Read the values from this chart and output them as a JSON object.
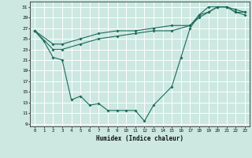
{
  "xlabel": "Humidex (Indice chaleur)",
  "background_color": "#cce8e0",
  "grid_color": "#ffffff",
  "line_color": "#1a6b5a",
  "xlim": [
    -0.5,
    23.5
  ],
  "ylim": [
    8.5,
    32.0
  ],
  "xticks": [
    0,
    1,
    2,
    3,
    4,
    5,
    6,
    7,
    8,
    9,
    10,
    11,
    12,
    13,
    14,
    15,
    16,
    17,
    18,
    19,
    20,
    21,
    22,
    23
  ],
  "yticks": [
    9,
    11,
    13,
    15,
    17,
    19,
    21,
    23,
    25,
    27,
    29,
    31
  ],
  "line1_x": [
    0,
    1,
    2,
    3,
    4,
    5,
    6,
    7,
    8,
    9,
    10,
    11,
    12,
    13,
    15,
    16,
    17,
    18,
    19,
    20,
    21,
    22,
    23
  ],
  "line1_y": [
    26.5,
    24.5,
    21.5,
    21.0,
    13.5,
    14.2,
    12.5,
    12.8,
    11.5,
    11.5,
    11.5,
    11.5,
    9.5,
    12.5,
    16.0,
    21.5,
    27.0,
    29.5,
    31.0,
    31.0,
    31.0,
    30.0,
    30.0
  ],
  "line2_x": [
    0,
    2,
    3,
    5,
    7,
    9,
    11,
    13,
    15,
    17,
    18,
    19,
    20,
    21,
    22,
    23
  ],
  "line2_y": [
    26.5,
    24.0,
    24.0,
    25.0,
    26.0,
    26.5,
    26.5,
    27.0,
    27.5,
    27.5,
    29.5,
    30.0,
    31.0,
    31.0,
    30.5,
    30.0
  ],
  "line3_x": [
    0,
    2,
    3,
    5,
    7,
    9,
    11,
    13,
    15,
    17,
    18,
    19,
    20,
    21,
    22,
    23
  ],
  "line3_y": [
    26.5,
    23.0,
    23.0,
    24.0,
    25.0,
    25.5,
    26.0,
    26.5,
    26.5,
    27.5,
    29.0,
    30.0,
    31.0,
    31.0,
    30.0,
    29.5
  ]
}
